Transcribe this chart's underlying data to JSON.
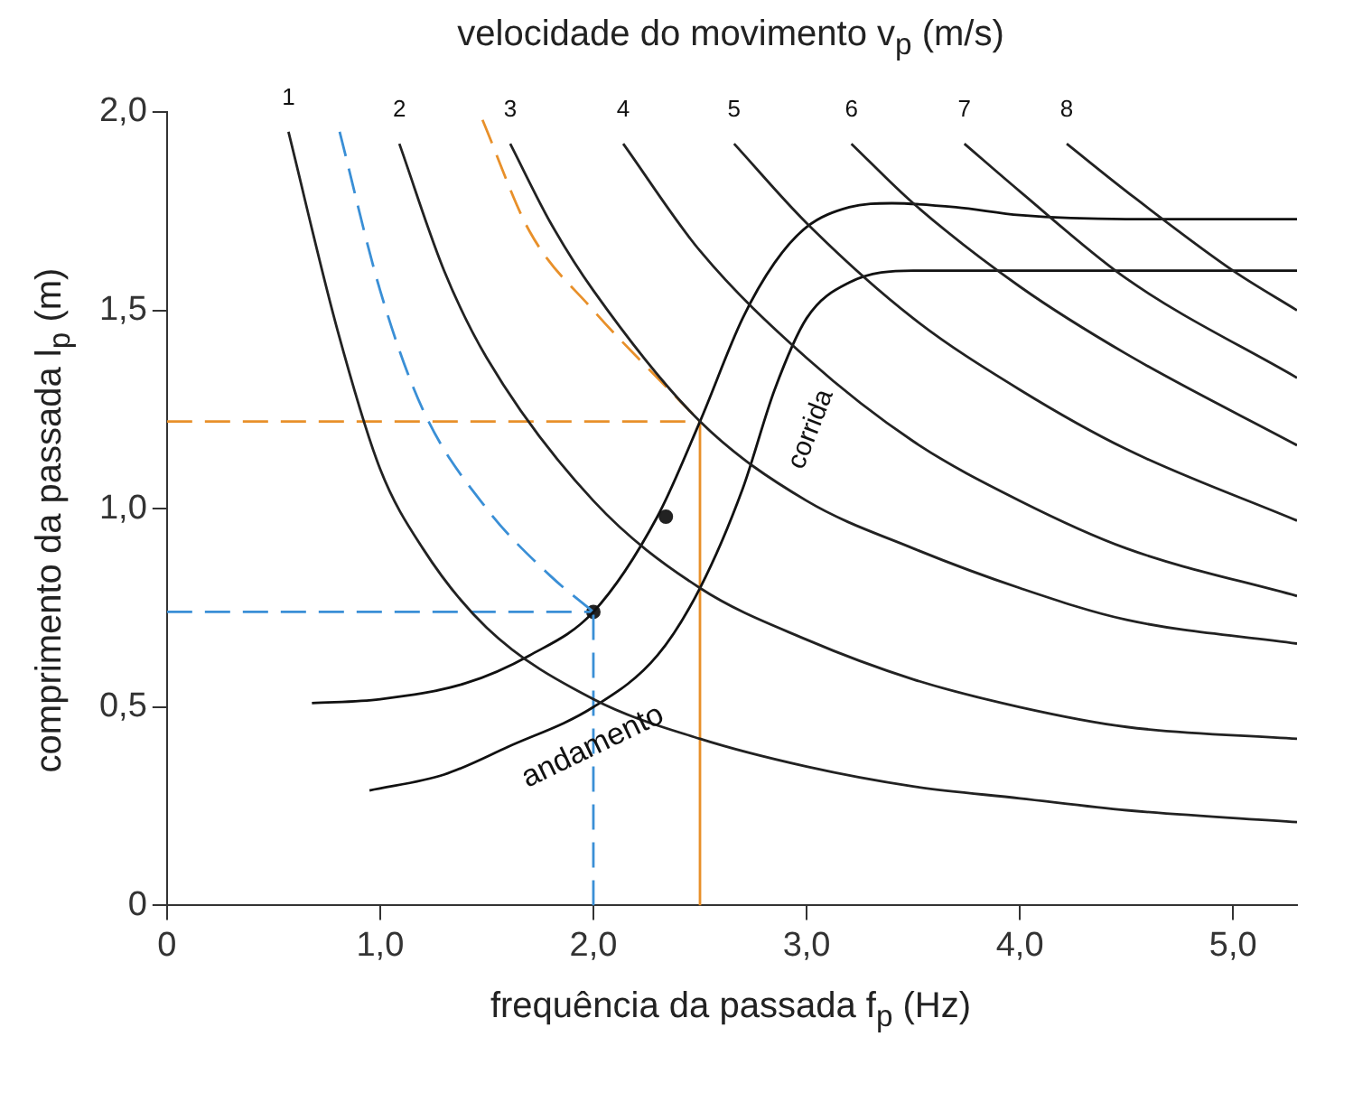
{
  "chart_data": {
    "type": "line",
    "title": "velocidade do movimento v$_{p}$ (m/s)",
    "xlabel": "frequência da passada f$_{p}$ (Hz)",
    "ylabel": "comprimento da passada l$_{p}$ (m)",
    "xlim": [
      0,
      5.3
    ],
    "xticks": [
      0,
      {
        "value": 1,
        "label": "1,0"
      },
      {
        "value": 2,
        "label": "2,0"
      },
      {
        "value": 3,
        "label": "3,0"
      },
      {
        "value": 4,
        "label": "4,0"
      },
      {
        "value": 5,
        "label": "5,0"
      }
    ],
    "ylim": [
      0,
      2.0
    ],
    "yticks": [
      0,
      {
        "value": 0.5,
        "label": "0,5"
      },
      {
        "value": 1,
        "label": "1,0"
      },
      {
        "value": 1.5,
        "label": "1,5"
      },
      {
        "value": 2,
        "label": "2,0"
      }
    ],
    "grid": false,
    "legend": false,
    "marker": "none",
    "line_style": "solid",
    "series": [
      {
        "color": "#222222",
        "x": [
          0.57,
          0.8,
          1.0,
          1.2,
          1.5,
          2.0,
          2.5,
          3.0,
          3.5,
          4.0,
          4.5,
          5.3
        ],
        "values": [
          1.95,
          1.45,
          1.1,
          0.9,
          0.7,
          0.52,
          0.42,
          0.35,
          0.3,
          0.27,
          0.24,
          0.21
        ]
      },
      {
        "color": "#222222",
        "x": [
          1.09,
          1.3,
          1.5,
          2.0,
          2.5,
          3.0,
          3.5,
          4.0,
          4.5,
          5.3
        ],
        "values": [
          1.92,
          1.6,
          1.38,
          1.02,
          0.8,
          0.67,
          0.57,
          0.5,
          0.45,
          0.42
        ]
      },
      {
        "color": "#222222",
        "x": [
          1.61,
          1.8,
          2.0,
          2.5,
          3.0,
          3.5,
          4.0,
          4.5,
          5.3
        ],
        "values": [
          1.92,
          1.72,
          1.55,
          1.22,
          1.02,
          0.9,
          0.8,
          0.72,
          0.66
        ]
      },
      {
        "color": "#222222",
        "x": [
          2.14,
          2.5,
          3.0,
          3.5,
          4.0,
          4.5,
          5.3
        ],
        "values": [
          1.92,
          1.65,
          1.38,
          1.17,
          1.02,
          0.9,
          0.78
        ]
      },
      {
        "color": "#222222",
        "x": [
          2.66,
          3.0,
          3.5,
          4.0,
          4.5,
          5.3
        ],
        "values": [
          1.92,
          1.72,
          1.48,
          1.3,
          1.15,
          0.97
        ]
      },
      {
        "color": "#222222",
        "x": [
          3.21,
          3.5,
          4.0,
          4.5,
          5.3
        ],
        "values": [
          1.92,
          1.77,
          1.56,
          1.39,
          1.16
        ]
      },
      {
        "color": "#222222",
        "x": [
          3.74,
          4.0,
          4.5,
          5.3
        ],
        "values": [
          1.92,
          1.8,
          1.58,
          1.33
        ]
      },
      {
        "color": "#222222",
        "x": [
          4.22,
          4.5,
          5.0,
          5.3
        ],
        "values": [
          1.92,
          1.8,
          1.6,
          1.5
        ]
      },
      {
        "color": "#111111",
        "x": [
          0.68,
          1.0,
          1.4,
          1.7,
          2.0,
          2.3,
          2.5,
          2.7,
          2.85,
          3.0,
          3.2,
          3.4,
          3.7,
          4.0,
          4.5,
          5.3
        ],
        "values": [
          0.51,
          0.52,
          0.56,
          0.63,
          0.74,
          0.98,
          1.22,
          1.48,
          1.62,
          1.71,
          1.76,
          1.77,
          1.76,
          1.74,
          1.73,
          1.73
        ]
      },
      {
        "color": "#111111",
        "x": [
          0.95,
          1.3,
          1.6,
          2.0,
          2.3,
          2.5,
          2.7,
          2.85,
          3.0,
          3.2,
          3.5,
          4.0,
          5.3
        ],
        "values": [
          0.29,
          0.33,
          0.4,
          0.5,
          0.63,
          0.8,
          1.05,
          1.3,
          1.48,
          1.57,
          1.6,
          1.6,
          1.6
        ]
      },
      {
        "type": "line",
        "color": "#3a8fd6",
        "line_style": "dashed",
        "x": [
          0.81,
          1.0,
          1.2,
          1.5,
          1.8,
          2.0
        ],
        "values": [
          1.95,
          1.55,
          1.25,
          1.0,
          0.83,
          0.74
        ]
      },
      {
        "type": "line",
        "color": "#3a8fd6",
        "line_style": "dashed",
        "x": [
          0,
          2.0
        ],
        "values": [
          0.74,
          0.74
        ]
      },
      {
        "type": "line",
        "color": "#3a8fd6",
        "line_style": "dashed",
        "x": [
          2.0,
          2.0
        ],
        "values": [
          0,
          0.74
        ]
      },
      {
        "type": "line",
        "color": "#e8902a",
        "line_style": "dashed",
        "x": [
          1.48,
          1.7,
          2.0,
          2.3,
          2.5
        ],
        "values": [
          1.98,
          1.7,
          1.5,
          1.33,
          1.22
        ]
      },
      {
        "type": "line",
        "color": "#e8902a",
        "line_style": "dashed",
        "x": [
          0,
          2.5
        ],
        "values": [
          1.22,
          1.22
        ]
      },
      {
        "type": "line",
        "color": "#e8902a",
        "line_style": "solid",
        "x": [
          2.5,
          2.5
        ],
        "values": [
          0,
          1.22
        ]
      },
      {
        "type": "scatter",
        "color": "#222222",
        "marker": "circle",
        "x": [
          2.0,
          2.34
        ],
        "values": [
          0.74,
          0.98
        ]
      }
    ],
    "annotations": [
      {
        "text": "1",
        "x": 0.57,
        "y": 1.95
      },
      {
        "text": "2",
        "x": 1.09,
        "y": 1.92
      },
      {
        "text": "3",
        "x": 1.61,
        "y": 1.92
      },
      {
        "text": "4",
        "x": 2.14,
        "y": 1.92
      },
      {
        "text": "5",
        "x": 2.66,
        "y": 1.92
      },
      {
        "text": "6",
        "x": 3.21,
        "y": 1.92
      },
      {
        "text": "7",
        "x": 3.74,
        "y": 1.92
      },
      {
        "text": "8",
        "x": 4.22,
        "y": 1.92
      },
      "corrida",
      "andamento"
    ]
  }
}
